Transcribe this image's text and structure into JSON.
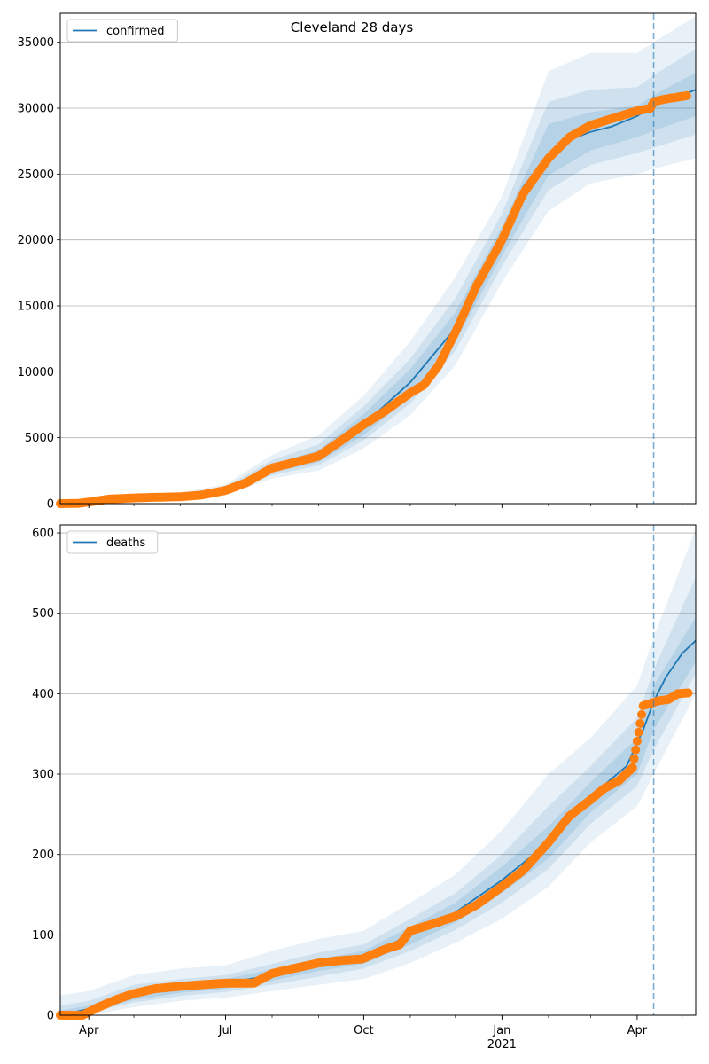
{
  "title": "Cleveland 28 days",
  "colors": {
    "model_line": "#1f77b4",
    "band": "#1f77b4",
    "observed": "#ff7f0e",
    "grid": "#b0b0b0",
    "forecast_marker": "#1f77b4"
  },
  "forecast_start": "2021-04-12",
  "x_ticks": [
    {
      "date": "2020-04-01",
      "label": "Apr",
      "sublabel": ""
    },
    {
      "date": "2020-07-01",
      "label": "Jul",
      "sublabel": ""
    },
    {
      "date": "2020-10-01",
      "label": "Oct",
      "sublabel": ""
    },
    {
      "date": "2021-01-01",
      "label": "Jan",
      "sublabel": "2021"
    },
    {
      "date": "2021-04-01",
      "label": "Apr",
      "sublabel": ""
    }
  ],
  "chart_data": [
    {
      "type": "line",
      "legend": "confirmed",
      "legend_position": "upper-left",
      "grid": "horizontal",
      "xlim": [
        "2020-03-13",
        "2021-05-10"
      ],
      "ylim": [
        0,
        37200
      ],
      "yticks": [
        0,
        5000,
        10000,
        15000,
        20000,
        25000,
        30000,
        35000
      ],
      "observed": [
        [
          "2020-03-13",
          0
        ],
        [
          "2020-03-25",
          20
        ],
        [
          "2020-04-01",
          120
        ],
        [
          "2020-04-15",
          350
        ],
        [
          "2020-05-01",
          430
        ],
        [
          "2020-05-15",
          480
        ],
        [
          "2020-06-01",
          520
        ],
        [
          "2020-06-15",
          650
        ],
        [
          "2020-07-01",
          1000
        ],
        [
          "2020-07-15",
          1600
        ],
        [
          "2020-08-01",
          2700
        ],
        [
          "2020-08-15",
          3100
        ],
        [
          "2020-09-01",
          3600
        ],
        [
          "2020-09-15",
          4700
        ],
        [
          "2020-10-01",
          6000
        ],
        [
          "2020-10-15",
          7000
        ],
        [
          "2020-11-01",
          8400
        ],
        [
          "2020-11-10",
          9000
        ],
        [
          "2020-11-20",
          10500
        ],
        [
          "2020-12-01",
          13000
        ],
        [
          "2020-12-15",
          16500
        ],
        [
          "2021-01-01",
          20000
        ],
        [
          "2021-01-15",
          23500
        ],
        [
          "2021-02-01",
          26200
        ],
        [
          "2021-02-15",
          27800
        ],
        [
          "2021-03-01",
          28700
        ],
        [
          "2021-03-15",
          29200
        ],
        [
          "2021-04-01",
          29800
        ],
        [
          "2021-04-10",
          30000
        ],
        [
          "2021-04-12",
          30500
        ],
        [
          "2021-04-20",
          30700
        ],
        [
          "2021-05-01",
          30900
        ],
        [
          "2021-05-04",
          30950
        ]
      ],
      "model": [
        [
          "2020-03-13",
          0
        ],
        [
          "2020-04-01",
          150
        ],
        [
          "2020-05-01",
          430
        ],
        [
          "2020-06-01",
          550
        ],
        [
          "2020-07-01",
          1000
        ],
        [
          "2020-08-01",
          2700
        ],
        [
          "2020-09-01",
          3600
        ],
        [
          "2020-10-01",
          6000
        ],
        [
          "2020-11-01",
          9200
        ],
        [
          "2020-12-01",
          13300
        ],
        [
          "2021-01-01",
          20000
        ],
        [
          "2021-01-15",
          24000
        ],
        [
          "2021-02-01",
          26500
        ],
        [
          "2021-02-15",
          27600
        ],
        [
          "2021-03-01",
          28200
        ],
        [
          "2021-03-15",
          28600
        ],
        [
          "2021-04-01",
          29400
        ],
        [
          "2021-04-12",
          30200
        ],
        [
          "2021-05-10",
          31400
        ]
      ],
      "bands": [
        {
          "dates": [
            "2020-03-13",
            "2020-04-01",
            "2020-05-01",
            "2020-06-01",
            "2020-07-01",
            "2020-08-01",
            "2020-09-01",
            "2020-10-01",
            "2020-11-01",
            "2020-12-01",
            "2021-01-01",
            "2021-02-01",
            "2021-03-01",
            "2021-04-01",
            "2021-04-12",
            "2021-05-10"
          ],
          "lower": [
            0,
            60,
            250,
            350,
            650,
            1900,
            2500,
            4200,
            6700,
            10500,
            16800,
            22200,
            24300,
            25000,
            25400,
            26200
          ],
          "upper": [
            200,
            350,
            750,
            850,
            1450,
            3700,
            5200,
            8200,
            12300,
            17200,
            23300,
            32800,
            34200,
            34200,
            35000,
            37000
          ]
        },
        {
          "dates": [
            "2020-03-13",
            "2020-04-01",
            "2020-05-01",
            "2020-06-01",
            "2020-07-01",
            "2020-08-01",
            "2020-09-01",
            "2020-10-01",
            "2020-11-01",
            "2020-12-01",
            "2021-01-01",
            "2021-02-01",
            "2021-03-01",
            "2021-04-01",
            "2021-04-12",
            "2021-05-10"
          ],
          "lower": [
            0,
            90,
            300,
            420,
            760,
            2150,
            2900,
            4800,
            7600,
            11600,
            18000,
            23800,
            25700,
            26600,
            27000,
            28000
          ],
          "upper": [
            130,
            270,
            620,
            720,
            1270,
            3300,
            4500,
            7400,
            11000,
            15600,
            22000,
            30500,
            31400,
            31600,
            32500,
            34500
          ]
        },
        {
          "dates": [
            "2020-03-13",
            "2020-04-01",
            "2020-05-01",
            "2020-06-01",
            "2020-07-01",
            "2020-08-01",
            "2020-09-01",
            "2020-10-01",
            "2020-11-01",
            "2020-12-01",
            "2021-01-01",
            "2021-02-01",
            "2021-03-01",
            "2021-04-01",
            "2021-04-12",
            "2021-05-10"
          ],
          "lower": [
            0,
            110,
            340,
            470,
            840,
            2350,
            3150,
            5200,
            8200,
            12300,
            18800,
            24900,
            26800,
            27800,
            28300,
            29400
          ],
          "upper": [
            90,
            210,
            540,
            640,
            1150,
            3000,
            4050,
            6800,
            10200,
            14500,
            21000,
            28800,
            29700,
            30200,
            31000,
            32700
          ]
        }
      ]
    },
    {
      "type": "line",
      "legend": "deaths",
      "legend_position": "upper-left",
      "grid": "horizontal",
      "xlim": [
        "2020-03-13",
        "2021-05-10"
      ],
      "ylim": [
        0,
        610
      ],
      "yticks": [
        0,
        100,
        200,
        300,
        400,
        500,
        600
      ],
      "observed": [
        [
          "2020-03-13",
          0
        ],
        [
          "2020-03-28",
          0
        ],
        [
          "2020-04-05",
          8
        ],
        [
          "2020-04-20",
          20
        ],
        [
          "2020-05-01",
          27
        ],
        [
          "2020-05-15",
          33
        ],
        [
          "2020-06-01",
          36
        ],
        [
          "2020-06-15",
          38
        ],
        [
          "2020-07-01",
          40
        ],
        [
          "2020-07-20",
          40
        ],
        [
          "2020-07-25",
          45
        ],
        [
          "2020-08-01",
          52
        ],
        [
          "2020-08-15",
          58
        ],
        [
          "2020-09-01",
          65
        ],
        [
          "2020-09-15",
          68
        ],
        [
          "2020-09-30",
          70
        ],
        [
          "2020-10-15",
          82
        ],
        [
          "2020-10-25",
          88
        ],
        [
          "2020-11-01",
          105
        ],
        [
          "2020-11-15",
          113
        ],
        [
          "2020-12-01",
          123
        ],
        [
          "2020-12-15",
          137
        ],
        [
          "2021-01-01",
          160
        ],
        [
          "2021-01-15",
          180
        ],
        [
          "2021-02-01",
          215
        ],
        [
          "2021-02-15",
          248
        ],
        [
          "2021-03-01",
          268
        ],
        [
          "2021-03-10",
          282
        ],
        [
          "2021-03-20",
          292
        ],
        [
          "2021-03-29",
          308
        ],
        [
          "2021-04-05",
          385
        ],
        [
          "2021-04-10",
          388
        ],
        [
          "2021-04-15",
          391
        ],
        [
          "2021-04-22",
          393
        ],
        [
          "2021-04-28",
          400
        ],
        [
          "2021-05-05",
          401
        ]
      ],
      "model": [
        [
          "2020-03-13",
          0
        ],
        [
          "2020-04-01",
          8
        ],
        [
          "2020-05-01",
          25
        ],
        [
          "2020-06-01",
          35
        ],
        [
          "2020-07-01",
          40
        ],
        [
          "2020-08-01",
          50
        ],
        [
          "2020-09-01",
          63
        ],
        [
          "2020-10-01",
          72
        ],
        [
          "2020-11-01",
          100
        ],
        [
          "2020-12-01",
          128
        ],
        [
          "2021-01-01",
          168
        ],
        [
          "2021-02-01",
          215
        ],
        [
          "2021-03-01",
          272
        ],
        [
          "2021-03-25",
          310
        ],
        [
          "2021-04-05",
          355
        ],
        [
          "2021-04-12",
          390
        ],
        [
          "2021-04-20",
          420
        ],
        [
          "2021-05-01",
          450
        ],
        [
          "2021-05-10",
          466
        ]
      ],
      "bands": [
        {
          "dates": [
            "2020-03-13",
            "2020-04-01",
            "2020-05-01",
            "2020-06-01",
            "2020-07-01",
            "2020-08-01",
            "2020-09-01",
            "2020-10-01",
            "2020-11-01",
            "2020-12-01",
            "2021-01-01",
            "2021-02-01",
            "2021-03-01",
            "2021-04-01",
            "2021-04-12",
            "2021-05-10"
          ],
          "lower": [
            0,
            0,
            10,
            18,
            22,
            30,
            38,
            45,
            65,
            90,
            120,
            160,
            215,
            260,
            300,
            400
          ],
          "upper": [
            25,
            30,
            50,
            58,
            62,
            80,
            95,
            105,
            140,
            175,
            230,
            300,
            345,
            410,
            470,
            605
          ]
        },
        {
          "dates": [
            "2020-03-13",
            "2020-04-01",
            "2020-05-01",
            "2020-06-01",
            "2020-07-01",
            "2020-08-01",
            "2020-09-01",
            "2020-10-01",
            "2020-11-01",
            "2020-12-01",
            "2021-01-01",
            "2021-02-01",
            "2021-03-01",
            "2021-04-01",
            "2021-04-12",
            "2021-05-10"
          ],
          "lower": [
            0,
            3,
            16,
            24,
            29,
            38,
            48,
            58,
            80,
            106,
            140,
            182,
            238,
            285,
            330,
            425
          ],
          "upper": [
            12,
            18,
            38,
            45,
            50,
            64,
            78,
            88,
            120,
            152,
            200,
            260,
            310,
            370,
            430,
            545
          ]
        },
        {
          "dates": [
            "2020-03-13",
            "2020-04-01",
            "2020-05-01",
            "2020-06-01",
            "2020-07-01",
            "2020-08-01",
            "2020-09-01",
            "2020-10-01",
            "2020-11-01",
            "2020-12-01",
            "2021-01-01",
            "2021-02-01",
            "2021-03-01",
            "2021-04-01",
            "2021-04-12",
            "2021-05-10"
          ],
          "lower": [
            0,
            5,
            19,
            28,
            33,
            43,
            55,
            64,
            88,
            115,
            152,
            195,
            252,
            300,
            355,
            440
          ],
          "upper": [
            6,
            12,
            32,
            40,
            45,
            57,
            70,
            80,
            110,
            140,
            185,
            235,
            290,
            345,
            410,
            495
          ]
        }
      ]
    }
  ]
}
